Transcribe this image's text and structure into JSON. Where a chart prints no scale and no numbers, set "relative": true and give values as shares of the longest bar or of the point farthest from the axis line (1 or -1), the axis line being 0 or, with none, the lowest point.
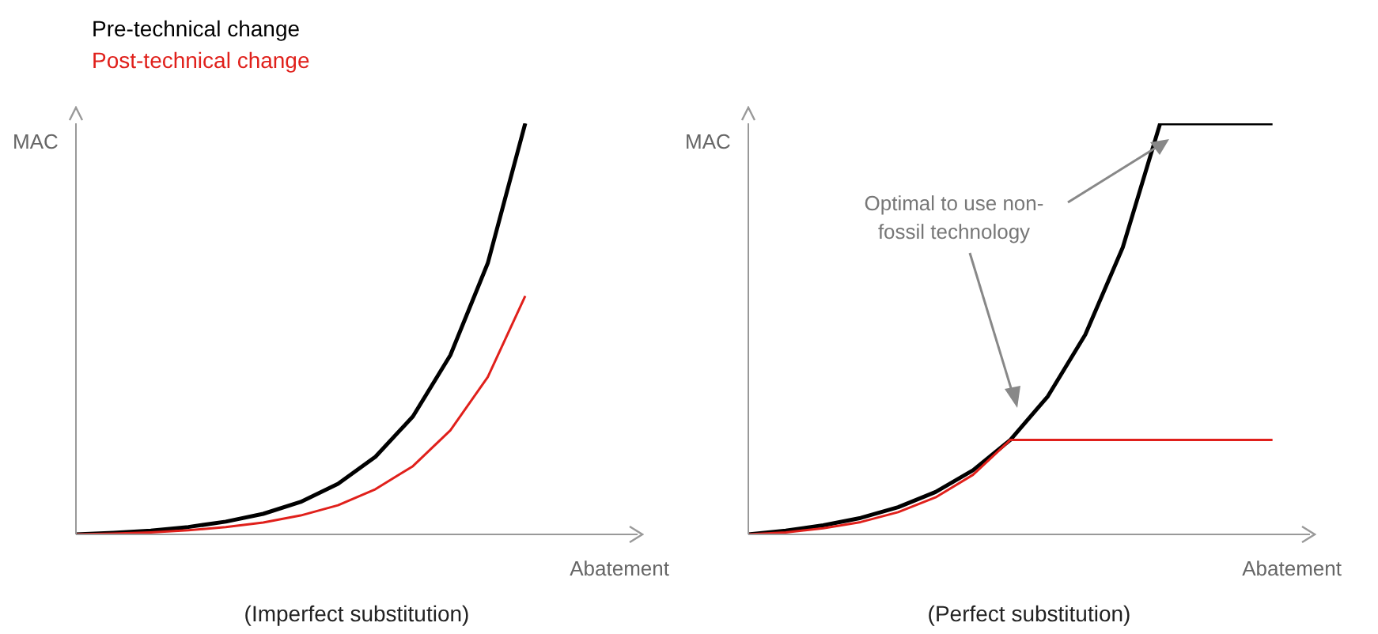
{
  "chart_data": [
    {
      "type": "line",
      "title": "(Imperfect substitution)",
      "xlabel": "Abatement",
      "ylabel": "MAC",
      "relative": true,
      "categories": [
        null,
        null,
        null,
        null,
        null,
        null,
        null,
        null,
        null,
        null,
        null,
        null,
        null,
        null,
        null,
        null
      ],
      "legend": "top left",
      "marker": "none",
      "grid": false,
      "series": [
        {
          "name": "Pre-technical change",
          "color": "#000000",
          "values": [
            0,
            0.004,
            0.009,
            0.018,
            0.031,
            0.05,
            0.079,
            0.123,
            0.189,
            0.287,
            0.436,
            0.66,
            1,
            null,
            null,
            null
          ]
        },
        {
          "name": "Post-technical change",
          "color": "#e0201b",
          "values": [
            0,
            0.002,
            0.005,
            0.01,
            0.018,
            0.029,
            0.046,
            0.071,
            0.11,
            0.166,
            0.253,
            0.383,
            0.58,
            null,
            null,
            null
          ]
        }
      ]
    },
    {
      "type": "line",
      "title": "(Perfect substitution)",
      "xlabel": "Abatement",
      "ylabel": "MAC",
      "relative": true,
      "categories": [
        null,
        null,
        null,
        null,
        null,
        null,
        null,
        null,
        null,
        null,
        null,
        null,
        null,
        null,
        null,
        null
      ],
      "marker": "none",
      "grid": false,
      "annotations": [
        "Optimal to use non-fossil technology"
      ],
      "series": [
        {
          "color": "#000000",
          "values": [
            0,
            0.009,
            0.022,
            0.04,
            0.066,
            0.103,
            0.156,
            0.23,
            0.336,
            0.486,
            0.698,
            1,
            1,
            1,
            1,
            null
          ]
        },
        {
          "color": "#e0201b",
          "values": [
            0,
            0.005,
            0.015,
            0.03,
            0.054,
            0.09,
            0.145,
            0.23,
            0.23,
            0.23,
            0.23,
            0.23,
            0.23,
            0.23,
            0.23,
            null
          ]
        }
      ]
    }
  ]
}
